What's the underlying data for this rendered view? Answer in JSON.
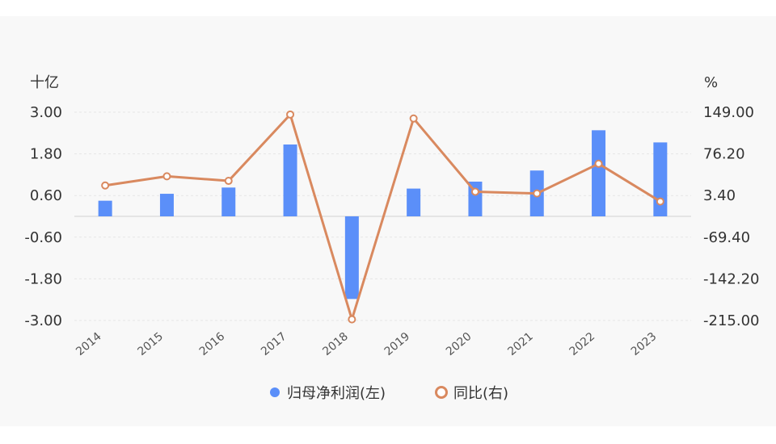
{
  "chart_data": {
    "type": "bar+line",
    "categories": [
      "2014",
      "2015",
      "2016",
      "2017",
      "2018",
      "2019",
      "2020",
      "2021",
      "2022",
      "2023"
    ],
    "left_axis": {
      "unit": "十亿",
      "ticks": [
        "3.00",
        "1.80",
        "0.60",
        "-0.60",
        "-1.80",
        "-3.00"
      ],
      "ylim": [
        -3.0,
        3.0
      ]
    },
    "right_axis": {
      "unit": "%",
      "ticks": [
        "149.00",
        "76.20",
        "3.40",
        "-69.40",
        "-142.20",
        "-215.00"
      ],
      "ylim": [
        -215.0,
        149.0
      ]
    },
    "series": [
      {
        "name": "归母净利润(左)",
        "type": "bar",
        "axis": "left",
        "color": "#5b8ff9",
        "values": [
          0.45,
          0.65,
          0.83,
          2.07,
          -2.38,
          0.8,
          1.0,
          1.32,
          2.48,
          2.13
        ]
      },
      {
        "name": "同比(右)",
        "type": "line",
        "axis": "right",
        "color": "#d9895f",
        "values": [
          21.0,
          37.0,
          29.0,
          145.0,
          -213.0,
          138.0,
          10.0,
          7.0,
          59.0,
          -7.0
        ]
      }
    ]
  }
}
